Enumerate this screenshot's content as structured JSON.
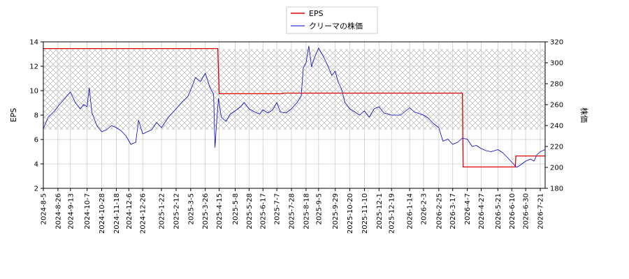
{
  "chart_data": {
    "type": "line",
    "legend": {
      "placement": "top-center",
      "entries": [
        {
          "label": "EPS",
          "color": "#dd0000"
        },
        {
          "label": "クリーマの株価",
          "color": "#0000cc"
        }
      ]
    },
    "y_left": {
      "label": "EPS",
      "range": [
        2,
        14
      ],
      "ticks": [
        "2",
        "4",
        "6",
        "8",
        "10",
        "12",
        "14"
      ]
    },
    "y_right": {
      "label": "株価",
      "range": [
        180,
        320
      ],
      "ticks": [
        "180",
        "200",
        "220",
        "240",
        "260",
        "280",
        "300",
        "320"
      ]
    },
    "x_range": [
      "2024-8-5",
      "2026-7-28"
    ],
    "x_ticks": [
      "2024-8-5",
      "2024-8-26",
      "2024-9-13",
      "2024-10-7",
      "2024-10-28",
      "2024-11-18",
      "2024-12-6",
      "2024-12-26",
      "2025-1-22",
      "2025-2-12",
      "2025-3-5",
      "2025-3-26",
      "2025-4-15",
      "2025-5-8",
      "2025-5-28",
      "2025-6-17",
      "2025-7-7",
      "2025-7-28",
      "2025-8-18",
      "2025-9-5",
      "2025-9-29",
      "2025-10-20",
      "2025-11-10",
      "2025-12-1",
      "2025-12-19",
      "2026-1-14",
      "2026-2-3",
      "2026-2-25",
      "2026-3-17",
      "2026-4-7",
      "2026-4-27",
      "2026-5-21",
      "2026-6-10",
      "2026-6-30",
      "2026-7-21"
    ],
    "grid": true,
    "hatched_band": {
      "axis": "right",
      "from": 236,
      "to": 313
    },
    "series": [
      {
        "name": "EPS",
        "axis": "left",
        "color": "#dd0000",
        "step": true,
        "points": [
          [
            "2024-8-5",
            13.45
          ],
          [
            "2025-4-13",
            13.45
          ],
          [
            "2025-4-15",
            9.75
          ],
          [
            "2025-7-15",
            9.75
          ],
          [
            "2025-7-16",
            9.8
          ],
          [
            "2026-3-31",
            9.8
          ],
          [
            "2026-4-1",
            3.75
          ],
          [
            "2026-6-15",
            3.75
          ],
          [
            "2026-6-16",
            4.65
          ],
          [
            "2026-7-28",
            4.65
          ]
        ]
      },
      {
        "name": "クリーマの株価",
        "axis": "right",
        "color": "#0000cc",
        "points": [
          [
            "2024-8-5",
            237
          ],
          [
            "2024-8-12",
            248
          ],
          [
            "2024-8-20",
            253
          ],
          [
            "2024-8-28",
            260
          ],
          [
            "2024-9-5",
            266
          ],
          [
            "2024-9-13",
            272
          ],
          [
            "2024-9-20",
            262
          ],
          [
            "2024-9-27",
            256
          ],
          [
            "2024-10-2",
            260
          ],
          [
            "2024-10-7",
            258
          ],
          [
            "2024-10-10",
            276
          ],
          [
            "2024-10-14",
            252
          ],
          [
            "2024-10-21",
            240
          ],
          [
            "2024-10-28",
            234
          ],
          [
            "2024-11-4",
            236
          ],
          [
            "2024-11-11",
            240
          ],
          [
            "2024-11-18",
            238
          ],
          [
            "2024-11-25",
            235
          ],
          [
            "2024-12-2",
            230
          ],
          [
            "2024-12-9",
            222
          ],
          [
            "2024-12-16",
            224
          ],
          [
            "2024-12-20",
            245
          ],
          [
            "2024-12-26",
            232
          ],
          [
            "2025-1-8",
            236
          ],
          [
            "2025-1-15",
            243
          ],
          [
            "2025-1-22",
            238
          ],
          [
            "2025-2-1",
            248
          ],
          [
            "2025-2-12",
            256
          ],
          [
            "2025-2-20",
            262
          ],
          [
            "2025-3-1",
            268
          ],
          [
            "2025-3-5",
            274
          ],
          [
            "2025-3-12",
            286
          ],
          [
            "2025-3-19",
            282
          ],
          [
            "2025-3-26",
            290
          ],
          [
            "2025-4-2",
            276
          ],
          [
            "2025-4-7",
            270
          ],
          [
            "2025-4-9",
            219
          ],
          [
            "2025-4-11",
            240
          ],
          [
            "2025-4-14",
            266
          ],
          [
            "2025-4-18",
            248
          ],
          [
            "2025-4-25",
            244
          ],
          [
            "2025-5-1",
            251
          ],
          [
            "2025-5-8",
            254
          ],
          [
            "2025-5-16",
            258
          ],
          [
            "2025-5-21",
            262
          ],
          [
            "2025-5-28",
            256
          ],
          [
            "2025-6-5",
            253
          ],
          [
            "2025-6-12",
            251
          ],
          [
            "2025-6-17",
            255
          ],
          [
            "2025-6-24",
            252
          ],
          [
            "2025-7-1",
            255
          ],
          [
            "2025-7-7",
            262
          ],
          [
            "2025-7-12",
            253
          ],
          [
            "2025-7-20",
            252
          ],
          [
            "2025-7-28",
            256
          ],
          [
            "2025-8-5",
            262
          ],
          [
            "2025-8-11",
            268
          ],
          [
            "2025-8-14",
            295
          ],
          [
            "2025-8-18",
            300
          ],
          [
            "2025-8-22",
            316
          ],
          [
            "2025-8-26",
            296
          ],
          [
            "2025-8-29",
            303
          ],
          [
            "2025-9-5",
            314
          ],
          [
            "2025-9-12",
            306
          ],
          [
            "2025-9-19",
            296
          ],
          [
            "2025-9-24",
            288
          ],
          [
            "2025-9-29",
            292
          ],
          [
            "2025-10-3",
            282
          ],
          [
            "2025-10-8",
            275
          ],
          [
            "2025-10-13",
            262
          ],
          [
            "2025-10-20",
            256
          ],
          [
            "2025-10-27",
            253
          ],
          [
            "2025-11-3",
            250
          ],
          [
            "2025-11-10",
            254
          ],
          [
            "2025-11-17",
            248
          ],
          [
            "2025-11-24",
            256
          ],
          [
            "2025-12-1",
            258
          ],
          [
            "2025-12-8",
            252
          ],
          [
            "2025-12-19",
            250
          ],
          [
            "2026-1-1",
            250
          ],
          [
            "2026-1-14",
            257
          ],
          [
            "2026-1-21",
            253
          ],
          [
            "2026-2-3",
            250
          ],
          [
            "2026-2-10",
            247
          ],
          [
            "2026-2-17",
            242
          ],
          [
            "2026-2-25",
            238
          ],
          [
            "2026-3-3",
            225
          ],
          [
            "2026-3-10",
            227
          ],
          [
            "2026-3-17",
            222
          ],
          [
            "2026-3-24",
            224
          ],
          [
            "2026-3-31",
            228
          ],
          [
            "2026-4-7",
            227
          ],
          [
            "2026-4-14",
            220
          ],
          [
            "2026-4-20",
            221
          ],
          [
            "2026-4-27",
            218
          ],
          [
            "2026-5-4",
            216
          ],
          [
            "2026-5-11",
            215
          ],
          [
            "2026-5-21",
            217
          ],
          [
            "2026-5-28",
            214
          ],
          [
            "2026-6-3",
            210
          ],
          [
            "2026-6-10",
            205
          ],
          [
            "2026-6-17",
            200
          ],
          [
            "2026-6-24",
            203
          ],
          [
            "2026-6-30",
            206
          ],
          [
            "2026-7-7",
            208
          ],
          [
            "2026-7-12",
            206
          ],
          [
            "2026-7-16",
            212
          ],
          [
            "2026-7-21",
            215
          ],
          [
            "2026-7-28",
            217
          ]
        ]
      }
    ]
  }
}
